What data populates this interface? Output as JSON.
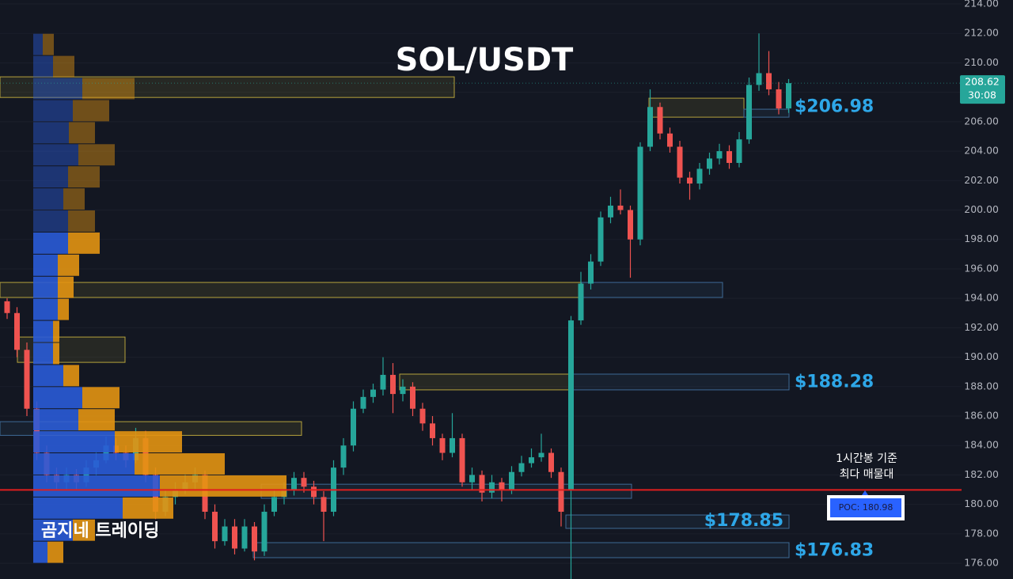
{
  "chart_data": {
    "type": "candlestick",
    "title": "SOL/USDT",
    "watermark": "곰지네 트레이딩",
    "annotation": [
      "1시간봉 기준",
      "최다 매물대"
    ],
    "up_color": "#26a69a",
    "down_color": "#ef5350",
    "ylim": [
      174.93,
      214.27
    ],
    "yticks": [
      {
        "value": 176,
        "label": "176.00"
      },
      {
        "value": 178,
        "label": "178.00"
      },
      {
        "value": 180,
        "label": "180.00"
      },
      {
        "value": 182,
        "label": "182.00"
      },
      {
        "value": 184,
        "label": "184.00"
      },
      {
        "value": 186,
        "label": "186.00"
      },
      {
        "value": 188,
        "label": "188.00"
      },
      {
        "value": 190,
        "label": "190.00"
      },
      {
        "value": 192,
        "label": "192.00"
      },
      {
        "value": 194,
        "label": "194.00"
      },
      {
        "value": 196,
        "label": "196.00"
      },
      {
        "value": 198,
        "label": "198.00"
      },
      {
        "value": 200,
        "label": "200.00"
      },
      {
        "value": 202,
        "label": "202.00"
      },
      {
        "value": 204,
        "label": "204.00"
      },
      {
        "value": 206,
        "label": "206.00"
      },
      {
        "value": 208,
        "label": "208.00"
      },
      {
        "value": 210,
        "label": "210.00"
      },
      {
        "value": 212,
        "label": "212.00"
      },
      {
        "value": 214,
        "label": "214.00"
      }
    ],
    "grid": true,
    "open": [
      193.8,
      193,
      190.5,
      186.5,
      183.5,
      182,
      181.5,
      182,
      181.5,
      182.5,
      183,
      184,
      183.5,
      183,
      184.5,
      182,
      179.5,
      180.5,
      181,
      181.5,
      182,
      179.5,
      177.5,
      178.5,
      177,
      178.5,
      176.8,
      179.5,
      180.5,
      181,
      181.8,
      181.2,
      180.5,
      179.5,
      182.5,
      184,
      186.5,
      187.3,
      187.8,
      188.8,
      187.5,
      188,
      186.5,
      185.5,
      184.5,
      183.5,
      184.5,
      181.5,
      182,
      180.8,
      181.5,
      181,
      182.2,
      182.8,
      183.2,
      183.5,
      182.2,
      181,
      192.5,
      195,
      196.5,
      199.5,
      200.3,
      200,
      198,
      204.3,
      207,
      205.2,
      204.3,
      202.2,
      201.8,
      202.8,
      203.5,
      204,
      203.2,
      204.8,
      208.5,
      209.3,
      208.2,
      206.9
    ],
    "high": [
      194,
      193.4,
      191,
      187,
      184,
      182.5,
      182.5,
      182.4,
      183,
      183.5,
      184.6,
      184.5,
      184,
      185.2,
      185,
      182.5,
      181,
      181.5,
      182,
      182.5,
      182.3,
      180,
      179,
      179,
      179,
      178.8,
      180,
      181,
      181.5,
      182.2,
      182.2,
      181.6,
      180.9,
      183,
      184.5,
      187,
      187.8,
      188.2,
      190,
      189.6,
      188.5,
      188.3,
      186.9,
      186,
      184.8,
      186.2,
      184.8,
      182.5,
      182.3,
      182,
      181.8,
      182.6,
      183.3,
      183.8,
      184.8,
      183.8,
      182.5,
      192.8,
      195.8,
      197,
      199.9,
      200.9,
      201.4,
      200.3,
      204.6,
      208.2,
      207.3,
      205.6,
      204.7,
      202.6,
      203.2,
      203.9,
      204.5,
      204.4,
      205.3,
      209,
      212,
      210.8,
      208.7,
      208.9
    ],
    "low": [
      192.6,
      190,
      186,
      183,
      181.5,
      181,
      181,
      181,
      181.2,
      182,
      182.8,
      183,
      182.5,
      182.8,
      181.5,
      179,
      179.2,
      180,
      180.7,
      181,
      179,
      177,
      177.2,
      176.6,
      176.8,
      176.2,
      176.5,
      179.2,
      180,
      180.6,
      180.8,
      180,
      177.5,
      179.2,
      182,
      183.6,
      186.2,
      186.9,
      187.4,
      186.2,
      187,
      186,
      185,
      184,
      183,
      183.2,
      181.2,
      181,
      180.2,
      180.4,
      180.2,
      180.7,
      181.9,
      182.5,
      182.9,
      181.8,
      178.5,
      174.9,
      192.2,
      194.6,
      196.2,
      199.1,
      199.7,
      195.4,
      197.6,
      204,
      204.8,
      203.9,
      201.8,
      200.7,
      201.4,
      202.4,
      203.1,
      202.8,
      202.9,
      204.5,
      208.1,
      207.8,
      206.5,
      206.6
    ],
    "close": [
      193,
      190.5,
      186.5,
      183.5,
      182,
      181.5,
      182,
      181.5,
      182.5,
      183,
      184,
      183.5,
      183,
      184.5,
      182,
      179.5,
      180.5,
      181,
      181.5,
      182,
      179.5,
      177.5,
      178.5,
      177,
      178.5,
      176.8,
      179.5,
      180.5,
      181,
      181.8,
      181.2,
      180.5,
      179.5,
      182.5,
      184,
      186.5,
      187.3,
      187.8,
      188.8,
      187.5,
      188,
      186.5,
      185.5,
      184.5,
      183.5,
      184.5,
      181.5,
      182,
      180.8,
      181.5,
      181,
      182.2,
      182.8,
      183.2,
      183.5,
      182.2,
      179.5,
      192.5,
      195,
      196.5,
      199.5,
      200.3,
      200,
      198,
      204.3,
      207,
      205.2,
      204.3,
      202.2,
      201.8,
      202.8,
      203.5,
      204,
      203.2,
      204.8,
      208.5,
      209.3,
      208.2,
      206.9,
      208.62
    ],
    "last_price": 208.62,
    "countdown": "30:08",
    "profile": {
      "bins": [
        176,
        177.5,
        179,
        180.5,
        182,
        183.5,
        185,
        186.5,
        188,
        189.5,
        191,
        192.5,
        194,
        195.5,
        197,
        198.5,
        200,
        201.5,
        203,
        204.5,
        206,
        207.5,
        209,
        210.5,
        212
      ],
      "buy": [
        18,
        50,
        113,
        160,
        128,
        103,
        57,
        62,
        38,
        25,
        25,
        31,
        31,
        31,
        44,
        44,
        38,
        44,
        57,
        45,
        50,
        62,
        25,
        12
      ],
      "sell": [
        20,
        28,
        64,
        160,
        114,
        85,
        46,
        47,
        20,
        8,
        8,
        14,
        20,
        27,
        40,
        34,
        27,
        40,
        46,
        33,
        46,
        66,
        27,
        14
      ],
      "buy_color": "#2a5bd7",
      "sell_color": "#e39412"
    },
    "zones": [
      {
        "low": 207.65,
        "high": 209.05,
        "color": "#b5a23c"
      },
      {
        "low": 194.06,
        "high": 195.08,
        "color": "#b5a23c"
      },
      {
        "low": 194.06,
        "high": 195.08,
        "color": "#3e6a96"
      },
      {
        "low": 189.65,
        "high": 191.37,
        "color": "#b5a23c"
      },
      {
        "low": 187.78,
        "high": 188.85,
        "color": "#b5a23c"
      },
      {
        "low": 187.78,
        "high": 188.85,
        "color": "#3e6a96"
      },
      {
        "low": 184.69,
        "high": 185.62,
        "color": "#3e6a96"
      },
      {
        "low": 184.69,
        "high": 185.62,
        "color": "#b5a23c"
      },
      {
        "low": 206.31,
        "high": 207.6,
        "color": "#b5a23c"
      },
      {
        "low": 206.31,
        "high": 206.85,
        "color": "#3e6a96"
      },
      {
        "low": 180.41,
        "high": 181.37,
        "color": "#3e6a96"
      },
      {
        "low": 178.37,
        "high": 179.28,
        "color": "#3e6a96"
      },
      {
        "low": 176.38,
        "high": 177.4,
        "color": "#3e6a96"
      }
    ],
    "levels": {
      "values": [
        206.98,
        188.28,
        178.85,
        176.83
      ],
      "value_labels": [
        "$206.98",
        "$188.28",
        "$178.85",
        "$176.83"
      ]
    },
    "poc": {
      "value": 180.98,
      "value_label": "POC: 180.98",
      "color": "#e01e1e"
    }
  }
}
